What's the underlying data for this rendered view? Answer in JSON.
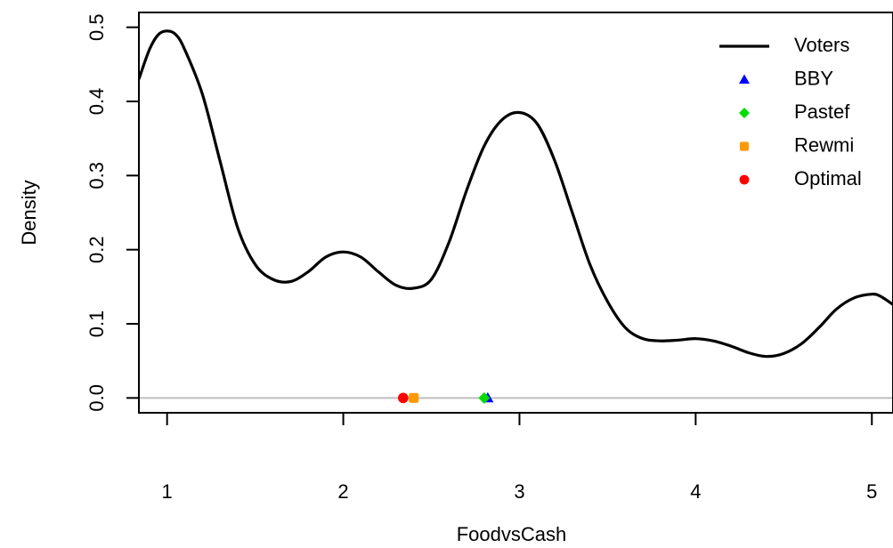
{
  "chart_data": {
    "type": "line",
    "xlabel": "FoodvsCash",
    "ylabel": "Density",
    "xlim": [
      0.84,
      5.12
    ],
    "ylim": [
      -0.02,
      0.52
    ],
    "x_ticks": [
      1,
      2,
      3,
      4,
      5
    ],
    "y_ticks": [
      "0.0",
      "0.1",
      "0.2",
      "0.3",
      "0.4",
      "0.5"
    ],
    "baseline_y": 0,
    "series": [
      {
        "name": "Voters",
        "color": "#000000",
        "points": [
          [
            0.84,
            0.43
          ],
          [
            0.9,
            0.47
          ],
          [
            0.95,
            0.49
          ],
          [
            1.0,
            0.495
          ],
          [
            1.05,
            0.49
          ],
          [
            1.1,
            0.47
          ],
          [
            1.2,
            0.41
          ],
          [
            1.3,
            0.32
          ],
          [
            1.4,
            0.23
          ],
          [
            1.5,
            0.18
          ],
          [
            1.6,
            0.16
          ],
          [
            1.7,
            0.157
          ],
          [
            1.8,
            0.17
          ],
          [
            1.9,
            0.19
          ],
          [
            2.0,
            0.197
          ],
          [
            2.1,
            0.19
          ],
          [
            2.2,
            0.17
          ],
          [
            2.3,
            0.152
          ],
          [
            2.4,
            0.148
          ],
          [
            2.5,
            0.16
          ],
          [
            2.6,
            0.21
          ],
          [
            2.7,
            0.28
          ],
          [
            2.8,
            0.34
          ],
          [
            2.9,
            0.375
          ],
          [
            3.0,
            0.385
          ],
          [
            3.1,
            0.37
          ],
          [
            3.2,
            0.32
          ],
          [
            3.3,
            0.25
          ],
          [
            3.4,
            0.18
          ],
          [
            3.5,
            0.13
          ],
          [
            3.6,
            0.095
          ],
          [
            3.7,
            0.08
          ],
          [
            3.8,
            0.077
          ],
          [
            3.9,
            0.078
          ],
          [
            4.0,
            0.08
          ],
          [
            4.1,
            0.077
          ],
          [
            4.2,
            0.07
          ],
          [
            4.3,
            0.061
          ],
          [
            4.4,
            0.056
          ],
          [
            4.5,
            0.06
          ],
          [
            4.6,
            0.073
          ],
          [
            4.7,
            0.095
          ],
          [
            4.8,
            0.12
          ],
          [
            4.9,
            0.135
          ],
          [
            5.0,
            0.14
          ],
          [
            5.05,
            0.137
          ],
          [
            5.12,
            0.126
          ]
        ]
      }
    ],
    "markers": [
      {
        "name": "BBY",
        "x": 2.82,
        "y": 0,
        "shape": "triangle",
        "color": "#0000ff"
      },
      {
        "name": "Pastef",
        "x": 2.8,
        "y": 0,
        "shape": "diamond",
        "color": "#00dd00"
      },
      {
        "name": "Rewmi",
        "x": 2.4,
        "y": 0,
        "shape": "square",
        "color": "#ff9900"
      },
      {
        "name": "Optimal",
        "x": 2.34,
        "y": 0,
        "shape": "circle",
        "color": "#ff0000"
      }
    ],
    "legend": {
      "position": "top-right",
      "entries": [
        {
          "label": "Voters",
          "symbol": "line",
          "color": "#000000"
        },
        {
          "label": "BBY",
          "symbol": "triangle",
          "color": "#0000ff"
        },
        {
          "label": "Pastef",
          "symbol": "diamond",
          "color": "#00dd00"
        },
        {
          "label": "Rewmi",
          "symbol": "square",
          "color": "#ff9900"
        },
        {
          "label": "Optimal",
          "symbol": "circle",
          "color": "#ff0000"
        }
      ]
    }
  }
}
